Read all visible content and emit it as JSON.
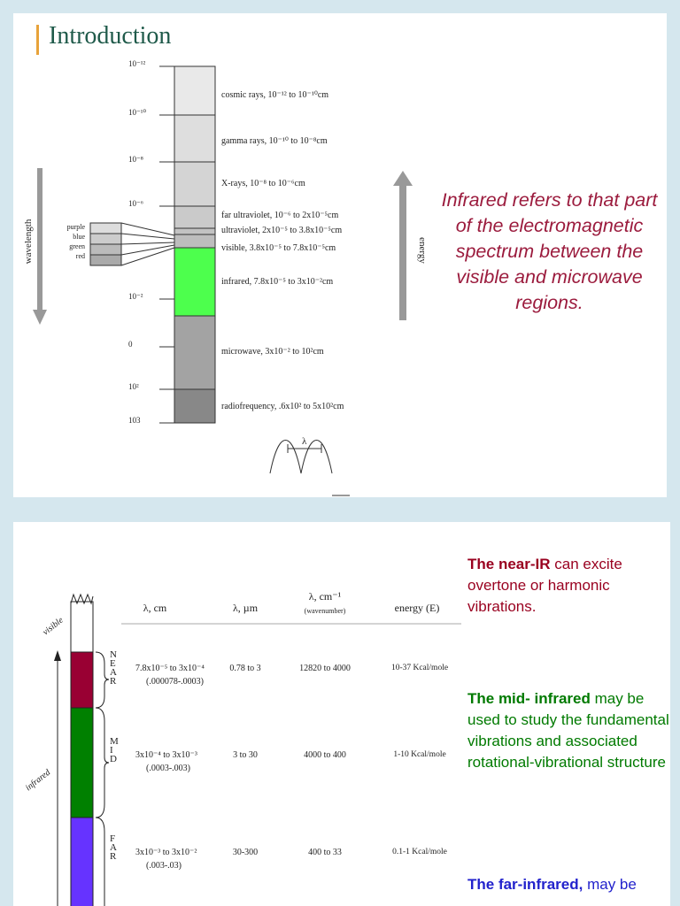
{
  "slide1": {
    "title": "Introduction",
    "scale_labels": [
      "10⁻¹²",
      "10⁻¹⁰",
      "10⁻⁸",
      "10⁻⁶",
      "10⁻²",
      "0",
      "10²",
      "103"
    ],
    "wavelength_label": "wavelength",
    "energy_label": "energy",
    "visible_colors": [
      "purple",
      "blue",
      "green",
      "red"
    ],
    "bands": [
      "cosmic rays, 10⁻¹² to 10⁻¹⁰cm",
      "gamma rays, 10⁻¹⁰ to 10⁻⁸cm",
      "X-rays, 10⁻⁸ to 10⁻⁶cm",
      "far ultraviolet, 10⁻⁶ to 2x10⁻⁵cm",
      "ultraviolet,  2x10⁻⁵ to 3.8x10⁻⁵cm",
      "visible, 3.8x10⁻⁵ to 7.8x10⁻⁵cm",
      "infrared, 7.8x10⁻⁵ to 3x10⁻²cm",
      "microwave, 3x10⁻² to 10²cm",
      "radiofrequency, .6x10² to 5x10²cm"
    ],
    "lambda": "λ",
    "note": "Infrared refers to that part of the electromagnetic spectrum between the visible and microwave regions."
  },
  "slide2": {
    "side_labels": {
      "visible": "visible",
      "infrared": "infrared"
    },
    "headers": [
      "λ, cm",
      "λ, µm",
      "λ, cm⁻¹",
      "energy (E)"
    ],
    "header_sub": "(wavenumber)",
    "rows": [
      {
        "region": "NEAR",
        "cm": "7.8x10⁻⁵ to 3x10⁻⁴",
        "cm_decimal": "(.000078-.0003)",
        "um": "0.78 to 3",
        "wavenumber": "12820 to 4000",
        "energy": "10-37 Kcal/mole"
      },
      {
        "region": "MID",
        "cm": "3x10⁻⁴ to 3x10⁻³",
        "cm_decimal": "(.0003-.003)",
        "um": "3 to 30",
        "wavenumber": "4000 to 400",
        "energy": "1-10 Kcal/mole"
      },
      {
        "region": "FAR",
        "cm": "3x10⁻³ to 3x10⁻²",
        "cm_decimal": "(.003-.03)",
        "um": "30-300",
        "wavenumber": "400 to 33",
        "energy": "0.1-1 Kcal/mole"
      }
    ],
    "notes": [
      {
        "bold": "The  near-IR",
        "text": "can excite overtone or harmonic vibrations."
      },
      {
        "bold": "The mid- infrared",
        "text": "may be used to study the fundamental vibrations and associated rotational-vibrational structure"
      },
      {
        "bold": "The far-infrared,",
        "text": "may be"
      }
    ]
  }
}
